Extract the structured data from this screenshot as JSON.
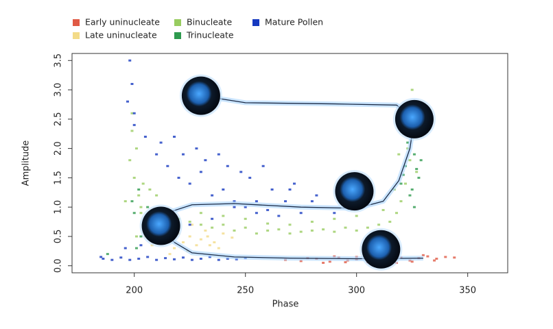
{
  "chart_data": {
    "type": "scatter",
    "xlabel": "Phase",
    "ylabel": "Amplitude",
    "xlim": [
      172,
      368
    ],
    "ylim": [
      -0.12,
      3.62
    ],
    "xticks": [
      200,
      250,
      300,
      350
    ],
    "yticks": [
      {
        "value": 0,
        "label": "0.0"
      },
      0.5,
      {
        "value": 1,
        "label": "1.0"
      },
      1.5,
      {
        "value": 2,
        "label": "2.0"
      },
      2.5,
      {
        "value": 3,
        "label": "3.0"
      },
      3.5
    ],
    "series": [
      {
        "name": "Early uninucleate",
        "color": "#e05a45",
        "x": [
          268,
          275,
          282,
          288,
          292,
          296,
          300,
          304,
          308,
          312,
          316,
          320,
          324,
          328,
          332,
          336,
          340,
          344,
          285,
          295,
          305,
          315,
          325,
          335,
          290,
          310,
          330,
          278,
          318,
          300
        ],
        "y": [
          0.1,
          0.08,
          0.12,
          0.07,
          0.14,
          0.09,
          0.11,
          0.13,
          0.08,
          0.12,
          0.1,
          0.14,
          0.09,
          0.13,
          0.16,
          0.12,
          0.15,
          0.14,
          0.05,
          0.06,
          0.06,
          0.07,
          0.07,
          0.09,
          0.16,
          0.17,
          0.18,
          0.13,
          0.05,
          0.15
        ]
      },
      {
        "name": "Late uninucleate",
        "color": "#f3db88",
        "x": [
          205,
          208,
          212,
          215,
          218,
          220,
          222,
          225,
          228,
          230,
          233,
          236,
          240,
          244,
          210,
          216,
          224,
          232,
          238,
          206,
          214,
          226,
          234,
          219
        ],
        "y": [
          0.5,
          0.35,
          0.6,
          0.45,
          0.3,
          0.55,
          0.4,
          0.5,
          0.35,
          0.45,
          0.5,
          0.4,
          0.55,
          0.48,
          0.75,
          0.2,
          0.25,
          0.6,
          0.3,
          0.65,
          0.8,
          0.7,
          0.35,
          0.6
        ]
      },
      {
        "name": "Binucleate",
        "color": "#98cc60",
        "x": [
          198,
          199,
          200,
          201,
          202,
          203,
          204,
          205,
          199,
          201,
          203,
          196,
          207,
          210,
          215,
          220,
          225,
          230,
          235,
          240,
          245,
          250,
          255,
          260,
          265,
          270,
          275,
          280,
          285,
          290,
          295,
          300,
          305,
          310,
          315,
          318,
          320,
          322,
          324,
          326,
          328,
          325,
          321,
          317,
          312,
          300,
          290,
          280,
          270,
          260,
          250,
          240,
          230,
          323,
          327,
          319
        ],
        "y": [
          1.8,
          2.3,
          1.5,
          2.0,
          1.2,
          0.9,
          1.4,
          0.7,
          2.6,
          0.5,
          1.0,
          1.1,
          1.3,
          1.2,
          0.9,
          0.8,
          0.75,
          0.7,
          0.65,
          0.7,
          0.6,
          0.65,
          0.55,
          0.6,
          0.62,
          0.55,
          0.58,
          0.6,
          0.62,
          0.58,
          0.65,
          0.6,
          0.65,
          0.7,
          0.75,
          0.9,
          1.1,
          1.4,
          1.8,
          2.2,
          2.7,
          3.0,
          2.4,
          1.3,
          0.95,
          0.85,
          0.8,
          0.75,
          0.7,
          0.72,
          0.8,
          0.85,
          0.9,
          2.0,
          1.6,
          1.9
        ]
      },
      {
        "name": "Trinucleate",
        "color": "#2e9a4e",
        "x": [
          320,
          322,
          324,
          326,
          328,
          323,
          325,
          327,
          321,
          329,
          324,
          326,
          200,
          202,
          204,
          199,
          203,
          201,
          206,
          188
        ],
        "y": [
          1.4,
          1.7,
          1.2,
          1.9,
          1.5,
          2.1,
          1.3,
          1.65,
          1.55,
          1.8,
          2.4,
          1.0,
          0.9,
          1.3,
          0.7,
          1.1,
          0.5,
          0.3,
          1.0,
          0.2
        ]
      },
      {
        "name": "Mature Pollen",
        "color": "#1639c0",
        "x": [
          186,
          190,
          194,
          198,
          202,
          206,
          210,
          214,
          218,
          222,
          226,
          230,
          234,
          238,
          242,
          246,
          250,
          200,
          205,
          210,
          215,
          220,
          225,
          230,
          235,
          240,
          245,
          250,
          255,
          260,
          265,
          270,
          275,
          280,
          198,
          199,
          197,
          200,
          212,
          222,
          232,
          242,
          252,
          262,
          272,
          282,
          292,
          218,
          228,
          238,
          248,
          258,
          268,
          208,
          215,
          225,
          235,
          245,
          255,
          203,
          196,
          185,
          290,
          300
        ],
        "y": [
          0.12,
          0.1,
          0.14,
          0.1,
          0.12,
          0.15,
          0.1,
          0.13,
          0.11,
          0.14,
          0.1,
          0.12,
          0.15,
          0.1,
          0.12,
          0.11,
          0.13,
          2.6,
          2.2,
          1.9,
          1.7,
          1.5,
          1.4,
          1.6,
          1.2,
          1.3,
          1.1,
          1.0,
          0.9,
          0.95,
          0.85,
          1.3,
          0.9,
          1.1,
          3.5,
          3.1,
          2.8,
          2.4,
          2.1,
          1.9,
          1.8,
          1.7,
          1.5,
          1.3,
          1.4,
          1.2,
          1.3,
          2.2,
          2.0,
          1.9,
          1.6,
          1.7,
          1.1,
          0.8,
          0.6,
          0.7,
          0.8,
          1.0,
          1.1,
          0.35,
          0.3,
          0.15,
          0.9,
          1.0
        ]
      }
    ],
    "trajectories": [
      {
        "x": [
          212,
          217,
          226,
          245,
          275,
          300,
          312,
          319,
          324,
          326,
          318,
          290,
          250,
          230
        ],
        "y": [
          0.68,
          0.93,
          1.04,
          1.06,
          1.0,
          0.98,
          1.1,
          1.45,
          2.0,
          2.5,
          2.74,
          2.76,
          2.78,
          2.9
        ]
      },
      {
        "x": [
          212,
          218,
          226,
          245,
          270,
          300,
          330
        ],
        "y": [
          0.68,
          0.4,
          0.22,
          0.15,
          0.13,
          0.12,
          0.13
        ]
      }
    ],
    "cells": {
      "x": [
        212,
        230,
        299,
        326,
        311
      ],
      "y": [
        0.68,
        2.9,
        1.27,
        2.5,
        0.28
      ]
    }
  }
}
